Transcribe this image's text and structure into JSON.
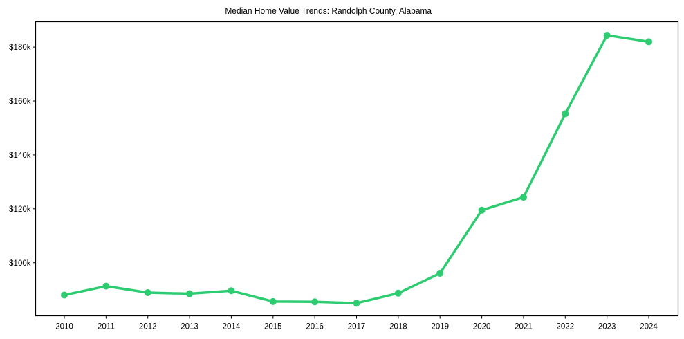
{
  "chart_data": {
    "type": "line",
    "title": "Median Home Value Trends: Randolph County, Alabama",
    "xlabel": "",
    "ylabel": "",
    "x": [
      "2010",
      "2011",
      "2012",
      "2013",
      "2014",
      "2015",
      "2016",
      "2017",
      "2018",
      "2019",
      "2020",
      "2021",
      "2022",
      "2023",
      "2024"
    ],
    "series": [
      {
        "name": "Median Home Value",
        "color": "#2ecc71",
        "values": [
          88000,
          91300,
          88900,
          88500,
          89600,
          85600,
          85500,
          85000,
          88700,
          96100,
          119500,
          124300,
          155300,
          184400,
          182000
        ]
      }
    ],
    "yticks": [
      100000,
      120000,
      140000,
      160000,
      180000
    ],
    "ytick_labels": [
      "$100k",
      "$120k",
      "$140k",
      "$160k",
      "$180k"
    ],
    "ylim": [
      80300,
      189400
    ],
    "grid": false,
    "legend": null
  }
}
